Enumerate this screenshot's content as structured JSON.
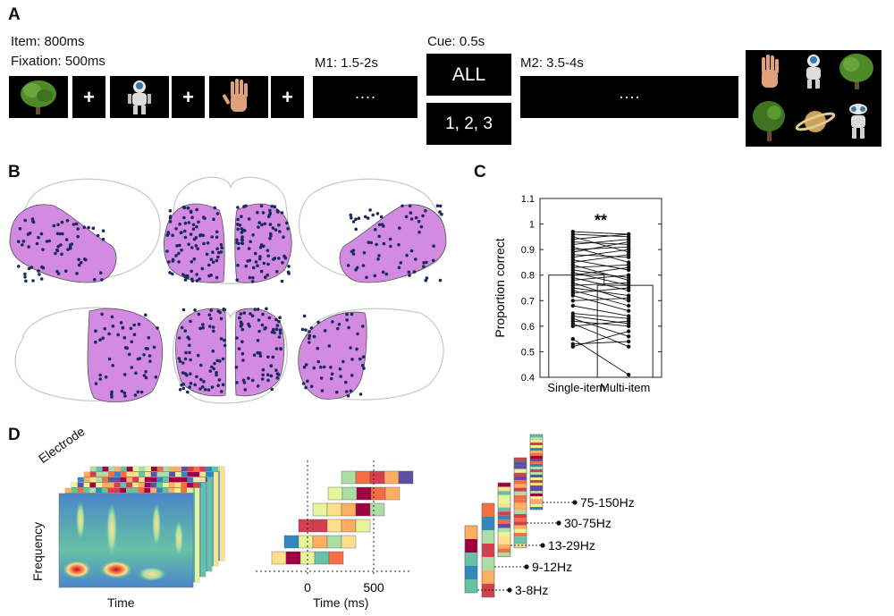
{
  "panels": {
    "a": "A",
    "b": "B",
    "c": "C",
    "d": "D"
  },
  "panel_a": {
    "item_label": "Item: 800ms",
    "fixation_label": "Fixation: 500ms",
    "m1_label": "M1: 1.5-2s",
    "cue_label": "Cue: 0.5s",
    "m2_label": "M2: 3.5-4s",
    "fixation_symbol": "+",
    "delay_symbol": "····",
    "cue_all": "ALL",
    "cue_items": "1, 2, 3",
    "stimuli": [
      "tree-image",
      "robot-image",
      "hand-image"
    ],
    "probe_array": [
      "hand-image",
      "robot-image",
      "tree-image",
      "tree-image",
      "saturn-image",
      "robot-image"
    ]
  },
  "panel_b": {
    "region_color": "#d28be0",
    "electrode_color": "#1b2a5e",
    "views": [
      "left-lateral",
      "posterior",
      "right-lateral",
      "left-medial",
      "anterior",
      "right-medial"
    ]
  },
  "chart_data": {
    "type": "bar",
    "categories": [
      "Single-item",
      "Multi-item"
    ],
    "values": [
      0.8,
      0.76
    ],
    "ylabel": "Proportion correct",
    "ylim": [
      0.4,
      1.1
    ],
    "yticks": [
      "0.4",
      "0.5",
      "0.6",
      "0.7",
      "0.8",
      "0.9",
      "1",
      "1.1"
    ],
    "annotation": "**",
    "paired_points": [
      [
        0.97,
        0.96
      ],
      [
        0.96,
        0.95
      ],
      [
        0.95,
        0.89
      ],
      [
        0.94,
        0.96
      ],
      [
        0.93,
        0.92
      ],
      [
        0.92,
        0.94
      ],
      [
        0.91,
        0.85
      ],
      [
        0.9,
        0.91
      ],
      [
        0.89,
        0.93
      ],
      [
        0.88,
        0.87
      ],
      [
        0.87,
        0.9
      ],
      [
        0.86,
        0.82
      ],
      [
        0.85,
        0.88
      ],
      [
        0.84,
        0.78
      ],
      [
        0.83,
        0.84
      ],
      [
        0.82,
        0.79
      ],
      [
        0.81,
        0.76
      ],
      [
        0.8,
        0.83
      ],
      [
        0.79,
        0.74
      ],
      [
        0.78,
        0.8
      ],
      [
        0.77,
        0.7
      ],
      [
        0.76,
        0.77
      ],
      [
        0.75,
        0.72
      ],
      [
        0.74,
        0.68
      ],
      [
        0.73,
        0.75
      ],
      [
        0.72,
        0.66
      ],
      [
        0.7,
        0.71
      ],
      [
        0.68,
        0.64
      ],
      [
        0.65,
        0.63
      ],
      [
        0.64,
        0.61
      ],
      [
        0.63,
        0.56
      ],
      [
        0.62,
        0.6
      ],
      [
        0.61,
        0.52
      ],
      [
        0.6,
        0.62
      ],
      [
        0.53,
        0.54
      ],
      [
        0.52,
        0.58
      ],
      [
        0.55,
        0.41
      ]
    ]
  },
  "panel_d": {
    "spectrogram_ylabel": "Frequency",
    "spectrogram_xlabel": "Time",
    "stack_label": "Electrode",
    "timeline_xlabel": "Time (ms)",
    "timeline_ticks": [
      "0",
      "500"
    ],
    "bands": [
      "75-150Hz",
      "30-75Hz",
      "13-29Hz",
      "9-12Hz",
      "3-8Hz"
    ],
    "palette": [
      "#5e4fa2",
      "#3288bd",
      "#66c2a5",
      "#abdda4",
      "#e6f598",
      "#fee08b",
      "#fdae61",
      "#f46d43",
      "#d53e4f",
      "#9e0142"
    ]
  }
}
